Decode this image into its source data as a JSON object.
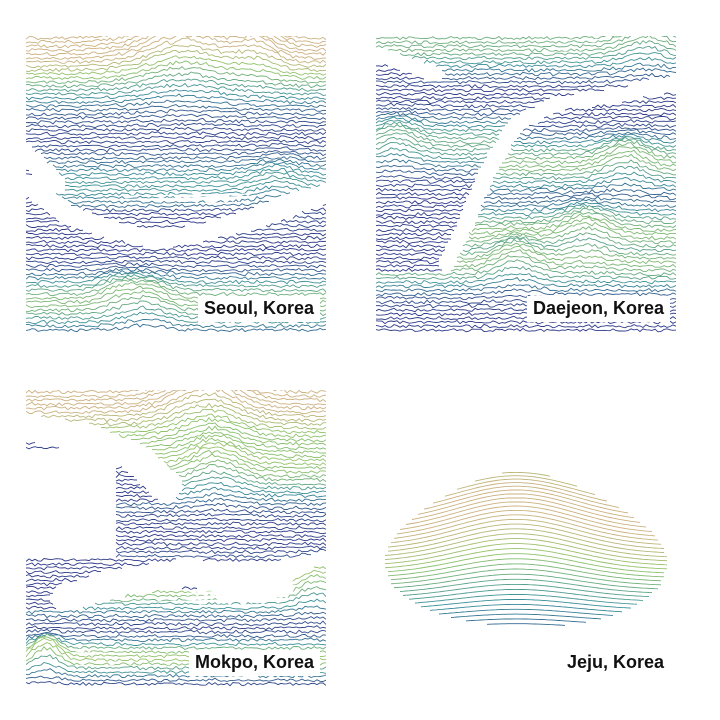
{
  "panels": [
    {
      "id": "seoul",
      "label": "Seoul, Korea"
    },
    {
      "id": "daejeon",
      "label": "Daejeon, Korea"
    },
    {
      "id": "mokpo",
      "label": "Mokpo, Korea"
    },
    {
      "id": "jeju",
      "label": "Jeju, Korea"
    }
  ],
  "colors": {
    "low": "#2b2f86",
    "mid": "#3b8f9a",
    "high": "#8fc46a",
    "peak": "#e6a98a",
    "background": "#ffffff",
    "water": "#ffffff",
    "label_text": "#111111"
  }
}
